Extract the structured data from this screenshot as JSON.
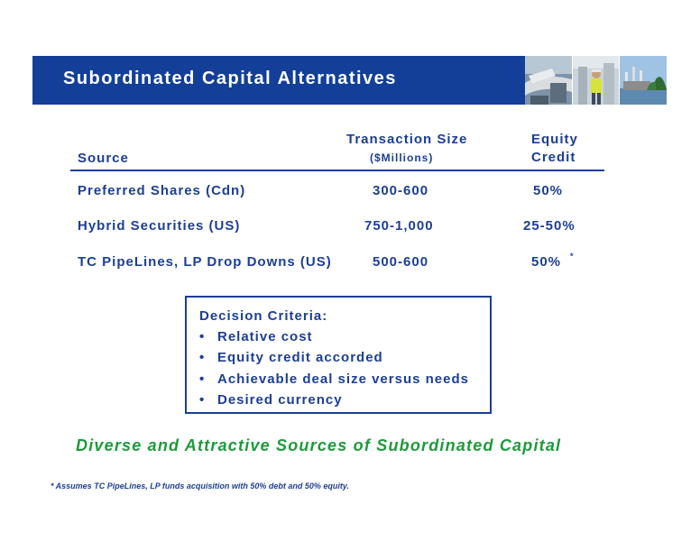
{
  "banner": {
    "title": "Subordinated Capital Alternatives",
    "color": "#133f98"
  },
  "photos": [
    "pipeline-photo",
    "worker-photo",
    "power-plant-photo"
  ],
  "table": {
    "headers": {
      "source": "Source",
      "size_line1": "Transaction Size",
      "size_line2": "($Millions)",
      "equity_line1": "Equity",
      "equity_line2": "Credit"
    },
    "rows": [
      {
        "source": "Preferred Shares (Cdn)",
        "size": "300-600",
        "equity": "50%"
      },
      {
        "source": "Hybrid Securities (US)",
        "size": "750-1,000",
        "equity": "25-50%"
      },
      {
        "source": "TC PipeLines, LP Drop Downs (US)",
        "size": "500-600",
        "equity": "50%"
      }
    ],
    "row3_marker": "*"
  },
  "criteria": {
    "title": "Decision Criteria:",
    "bullet": "•",
    "items": [
      "Relative cost",
      "Equity credit accorded",
      "Achievable deal size versus needs",
      "Desired currency"
    ]
  },
  "tagline": "Diverse and Attractive Sources of Subordinated Capital",
  "footnote": "* Assumes TC PipeLines, LP funds acquisition with 50% debt and 50% equity.",
  "colors": {
    "text": "#1c3f94",
    "tagline": "#1d9a3a"
  }
}
